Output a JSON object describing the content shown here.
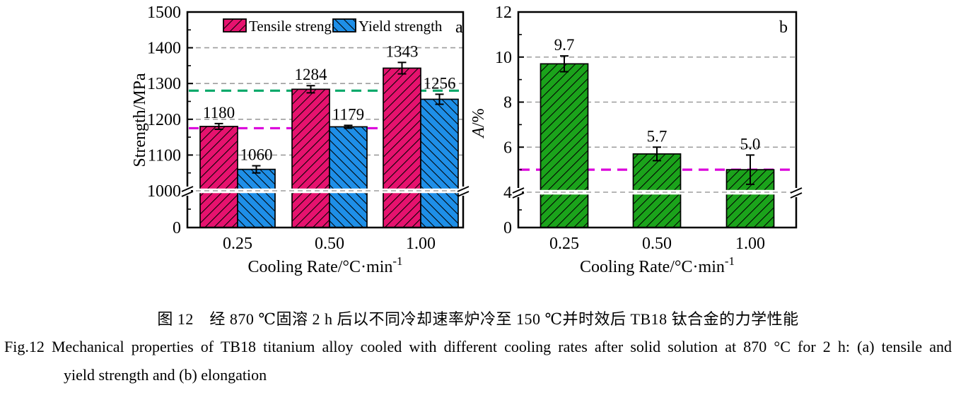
{
  "figure": {
    "caption_zh": "图 12　经 870 ℃固溶 2 h 后以不同冷却速率炉冷至 150 ℃并时效后 TB18 钛合金的力学性能",
    "caption_en_line1": "Fig.12   Mechanical properties of TB18 titanium alloy cooled with different cooling rates after solid solution at 870 °C for 2 h: (a) tensile and",
    "caption_en_line2": "yield strength and (b) elongation"
  },
  "chart_data": [
    {
      "type": "bar",
      "panel_label": "a",
      "title": "",
      "xlabel": "Cooling Rate/°C·min⁻¹",
      "ylabel": "Strength/MPa",
      "categories": [
        "0.25",
        "0.50",
        "1.00"
      ],
      "series": [
        {
          "name": "Tensile strength",
          "color": "#E6126E",
          "hatch": "/",
          "values": [
            1180,
            1284,
            1343
          ],
          "value_labels": [
            "1180",
            "1284",
            "1343"
          ],
          "errors": [
            8,
            10,
            16
          ]
        },
        {
          "name": "Yield strength",
          "color": "#1E8FE8",
          "hatch": "\\",
          "values": [
            1060,
            1179,
            1256
          ],
          "value_labels": [
            "1060",
            "1179",
            "1256"
          ],
          "errors": [
            10,
            4,
            14
          ]
        }
      ],
      "yticks": [
        0,
        1000,
        1100,
        1200,
        1300,
        1400,
        1500
      ],
      "ylim_main": [
        1000,
        1500
      ],
      "axis_break_at": 1000,
      "grid": true,
      "gridlines": [
        1000,
        1100,
        1200,
        1300,
        1400
      ],
      "ref_lines": [
        {
          "y": 1280,
          "color": "#00A868",
          "style": "dashed"
        },
        {
          "y": 1175,
          "color": "#DB00DB",
          "style": "dashed"
        }
      ],
      "legend_position": "top-center"
    },
    {
      "type": "bar",
      "panel_label": "b",
      "title": "",
      "xlabel": "Cooling Rate/°C·min⁻¹",
      "ylabel": "A/%",
      "categories": [
        "0.25",
        "0.50",
        "1.00"
      ],
      "series": [
        {
          "name": "",
          "color": "#1BA31B",
          "hatch": "/",
          "values": [
            9.7,
            5.7,
            5.0
          ],
          "value_labels": [
            "9.7",
            "5.7",
            "5.0"
          ],
          "errors": [
            0.35,
            0.3,
            0.65
          ]
        }
      ],
      "yticks": [
        0,
        4,
        6,
        8,
        10,
        12
      ],
      "ylim_main": [
        4,
        12
      ],
      "axis_break_at": 4,
      "grid": true,
      "gridlines": [
        4,
        6,
        8,
        10
      ],
      "ref_lines": [
        {
          "y": 5.0,
          "color": "#DB00DB",
          "style": "dashed"
        }
      ],
      "legend_position": "none"
    }
  ]
}
